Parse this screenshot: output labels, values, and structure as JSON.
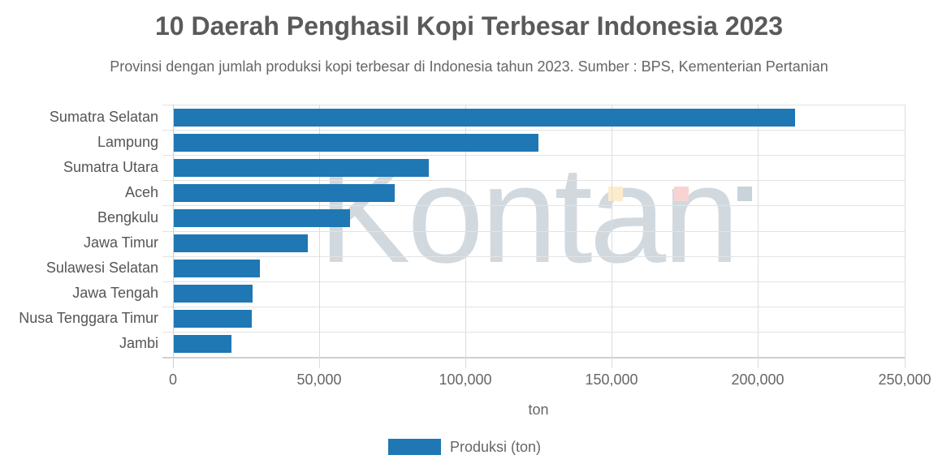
{
  "chart_data": {
    "type": "bar",
    "orientation": "horizontal",
    "title": "10 Daerah Penghasil Kopi Terbesar Indonesia 2023",
    "subtitle": "Provinsi dengan jumlah produksi kopi terbesar di Indonesia tahun 2023. Sumber : BPS, Kementerian Pertanian",
    "categories": [
      "Sumatra Selatan",
      "Lampung",
      "Sumatra Utara",
      "Aceh",
      "Bengkulu",
      "Jawa Timur",
      "Sulawesi Selatan",
      "Jawa Tengah",
      "Nusa Tenggara Timur",
      "Jambi"
    ],
    "series": [
      {
        "name": "Produksi (ton)",
        "color": "#1f77b4",
        "values": [
          212400,
          124500,
          87200,
          75500,
          60100,
          45800,
          29500,
          27000,
          26700,
          19600
        ]
      }
    ],
    "xlabel": "ton",
    "ylabel": "",
    "xlim": [
      0,
      250000
    ],
    "xticks": [
      0,
      50000,
      100000,
      150000,
      200000,
      250000
    ],
    "xtick_labels": [
      "0",
      "50,000",
      "100,000",
      "150,000",
      "200,000",
      "250,000"
    ],
    "grid": true,
    "legend_position": "bottom"
  },
  "header": {
    "title": "10 Daerah Penghasil Kopi Terbesar Indonesia 2023",
    "subtitle": "Provinsi dengan jumlah produksi kopi terbesar di Indonesia tahun 2023. Sumber : BPS, Kementerian Pertanian"
  },
  "axis": {
    "xlabel": "ton",
    "ticks": [
      "0",
      "50,000",
      "100,000",
      "150,000",
      "200,000",
      "250,000"
    ]
  },
  "legend": {
    "label": "Produksi (ton)",
    "color": "#1f77b4"
  },
  "watermark": {
    "text": "Kontan",
    "square_colors": [
      "#fdeccc",
      "#f9d3d3",
      "#c9d3da"
    ]
  }
}
